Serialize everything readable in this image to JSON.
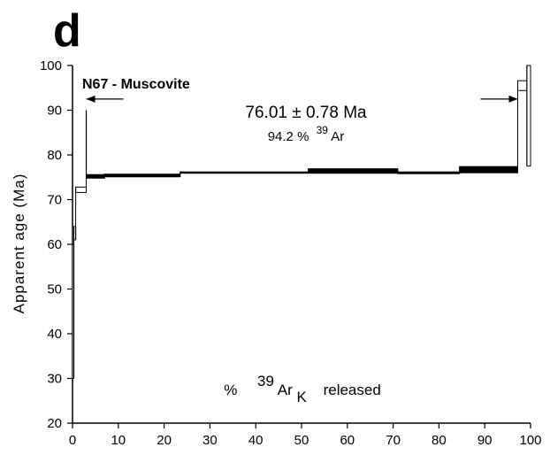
{
  "panel_label": "d",
  "chart_data": {
    "type": "line",
    "subtype": "age-spectrum",
    "sample_label": "N67 - Muscovite",
    "ylabel": "Apparent age (Ma)",
    "xlabel": {
      "prefix": "%",
      "mass": "39",
      "element": "Ar",
      "subscript": "K",
      "suffix": "released"
    },
    "xlim": [
      0,
      100
    ],
    "ylim": [
      20,
      100
    ],
    "xticks": [
      0,
      10,
      20,
      30,
      40,
      50,
      60,
      70,
      80,
      90,
      100
    ],
    "yticks": [
      20,
      30,
      40,
      50,
      60,
      70,
      80,
      90,
      100
    ],
    "plateau": {
      "age_text": "76.01 ± 0.78 Ma",
      "fraction_prefix": "94.2 %",
      "fraction_mass": "39",
      "fraction_element": "Ar",
      "x_start": 3,
      "x_end": 97.2
    },
    "steps": [
      {
        "x0": 0,
        "x1": 0.3,
        "age_low": 30,
        "age_high": 60,
        "filled": false
      },
      {
        "x0": 0.3,
        "x1": 0.7,
        "age_low": 61,
        "age_high": 64,
        "filled": false
      },
      {
        "x0": 0.7,
        "x1": 3.0,
        "age_low": 71.6,
        "age_high": 72.8,
        "filled": false
      },
      {
        "x0": 3.0,
        "x1": 7.0,
        "age_low": 74.8,
        "age_high": 75.6,
        "filled": true
      },
      {
        "x0": 7.0,
        "x1": 23.5,
        "age_low": 75.1,
        "age_high": 75.7,
        "filled": true
      },
      {
        "x0": 23.5,
        "x1": 51.5,
        "age_low": 75.9,
        "age_high": 76.2,
        "filled": true
      },
      {
        "x0": 51.5,
        "x1": 71.0,
        "age_low": 75.9,
        "age_high": 76.9,
        "filled": true
      },
      {
        "x0": 71.0,
        "x1": 84.5,
        "age_low": 75.8,
        "age_high": 76.2,
        "filled": true
      },
      {
        "x0": 84.5,
        "x1": 97.2,
        "age_low": 76.0,
        "age_high": 77.4,
        "filled": true
      },
      {
        "x0": 97.2,
        "x1": 99.2,
        "age_low": 94.4,
        "age_high": 96.6,
        "filled": false
      },
      {
        "x0": 99.2,
        "x1": 100,
        "age_low": 77.5,
        "age_high": 100,
        "filled": false
      }
    ]
  }
}
